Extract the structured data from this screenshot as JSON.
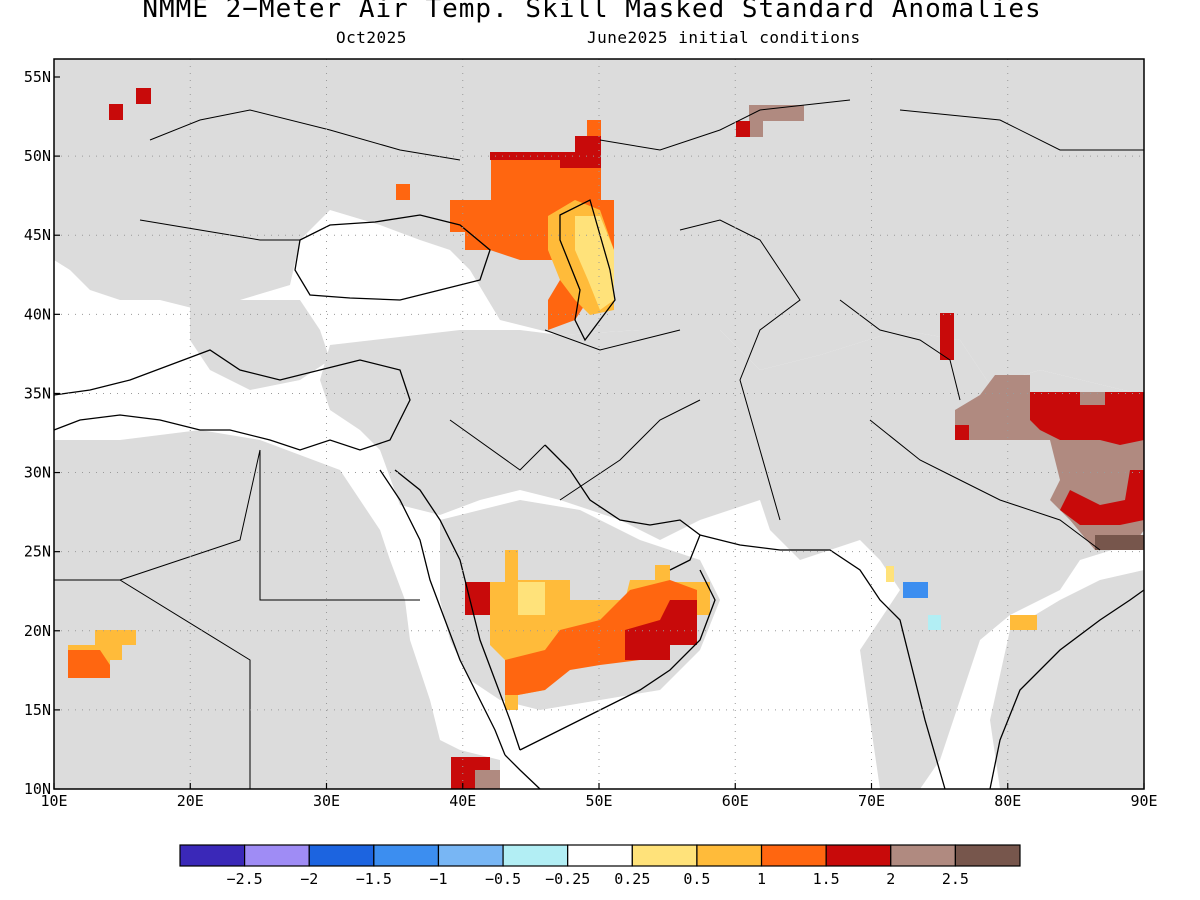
{
  "header": {
    "title": "NMME 2−Meter Air Temp. Skill Masked Standard Anomalies",
    "month": "Oct2025",
    "init": "June2025 initial conditions"
  },
  "map": {
    "lon_labels": [
      "10E",
      "20E",
      "30E",
      "40E",
      "50E",
      "60E",
      "70E",
      "80E",
      "90E"
    ],
    "lat_labels": [
      "55N",
      "50N",
      "45N",
      "40N",
      "35N",
      "30N",
      "25N",
      "20N",
      "15N",
      "10N"
    ],
    "mask_color": "#dcdcdc",
    "neutral_color": "#ffffff",
    "border_color": "#000000"
  },
  "legend": {
    "colors": [
      "#3a28b8",
      "#9f8cf5",
      "#1c64e0",
      "#3c8ef0",
      "#78b6f4",
      "#b2eef4",
      "#ffffff",
      "#ffe27a",
      "#ffbb3a",
      "#ff6610",
      "#c80a0a",
      "#b08a80",
      "#77564c"
    ],
    "labels": [
      "−2.5",
      "−2",
      "−1.5",
      "−1",
      "−0.5",
      "−0.25",
      "0.25",
      "0.5",
      "1",
      "1.5",
      "2",
      "2.5"
    ]
  }
}
